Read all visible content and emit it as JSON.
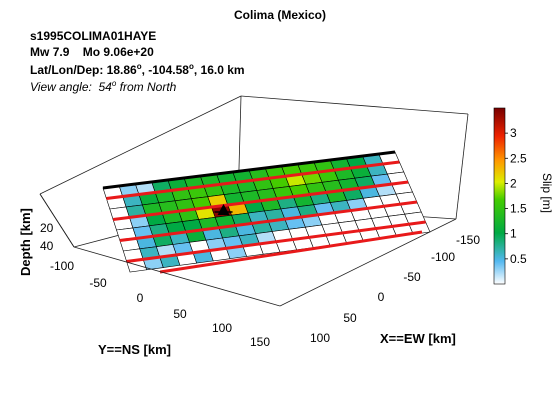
{
  "title": "Colima (Mexico)",
  "event_id": "s1995COLIMA01HAYE",
  "magnitude": {
    "mw_label": "Mw",
    "mw": "7.9",
    "mo_label": "Mo",
    "mo": "9.06e+20"
  },
  "location": {
    "label": "Lat/Lon/Dep:",
    "lat": "18.86",
    "lon": "-104.58",
    "dep": "16.0",
    "unit": "km"
  },
  "view": {
    "label": "View angle:",
    "angle": "54",
    "suffix": "from North"
  },
  "chart_data": {
    "type": "heatmap",
    "title": "Colima (Mexico)",
    "x_axis": {
      "label": "X==EW [km]",
      "ticks": [
        "-150",
        "-100",
        "-50",
        "0",
        "50",
        "100"
      ]
    },
    "y_axis": {
      "label": "Y==NS [km]",
      "ticks": [
        "-100",
        "-50",
        "0",
        "50",
        "100",
        "150"
      ]
    },
    "z_axis": {
      "label": "Depth [km]",
      "ticks": [
        "20",
        "40"
      ]
    },
    "colorbar": {
      "label": "Slip [m]",
      "min": 0,
      "max": 3.5,
      "ticks": [
        "0.5",
        "1",
        "1.5",
        "2",
        "2.5",
        "3"
      ]
    },
    "grid": {
      "rows": 8,
      "cols": 18
    },
    "hypocenter": {
      "row": 3,
      "col": 6
    },
    "slip_rows": [
      [
        0.0,
        0.3,
        0.2,
        0.9,
        1.1,
        1.3,
        1.3,
        1.2,
        1.2,
        1.4,
        1.6,
        1.7,
        1.6,
        1.5,
        1.2,
        1.0,
        0.6,
        0.0
      ],
      [
        0.0,
        0.6,
        1.1,
        1.3,
        1.5,
        1.6,
        1.5,
        1.3,
        1.3,
        1.5,
        1.7,
        2.0,
        1.8,
        1.6,
        1.3,
        1.1,
        0.6,
        0.0
      ],
      [
        0.0,
        0.7,
        1.3,
        1.4,
        1.5,
        1.7,
        2.2,
        1.2,
        1.3,
        1.4,
        1.6,
        1.7,
        1.5,
        1.4,
        1.2,
        0.9,
        0.4,
        0.0
      ],
      [
        0.0,
        0.3,
        1.0,
        1.3,
        1.5,
        2.1,
        3.4,
        2.3,
        1.0,
        1.3,
        0.8,
        1.2,
        0.8,
        1.3,
        0.9,
        0.5,
        0.2,
        0.0
      ],
      [
        0.0,
        0.4,
        0.8,
        1.0,
        1.0,
        1.3,
        1.2,
        0.9,
        0.6,
        0.7,
        0.5,
        0.8,
        0.4,
        0.6,
        0.3,
        0.0,
        0.0,
        0.0
      ],
      [
        0.0,
        0.5,
        0.9,
        0.6,
        1.1,
        0.5,
        0.8,
        0.5,
        0.7,
        0.6,
        0.4,
        0.3,
        0.0,
        0.0,
        0.0,
        0.0,
        0.0,
        0.0
      ],
      [
        0.0,
        0.6,
        0.2,
        0.4,
        0.0,
        0.3,
        0.4,
        0.6,
        0.2,
        0.0,
        0.0,
        0.0,
        0.0,
        0.0,
        0.0,
        0.0,
        0.0,
        0.0
      ],
      [
        0.0,
        0.3,
        0.6,
        0.0,
        0.5,
        0.0,
        0.3,
        0.0,
        0.0,
        0.0,
        0.0,
        0.0,
        0.0,
        0.0,
        0.0,
        0.0,
        0.0,
        0.0
      ]
    ]
  }
}
